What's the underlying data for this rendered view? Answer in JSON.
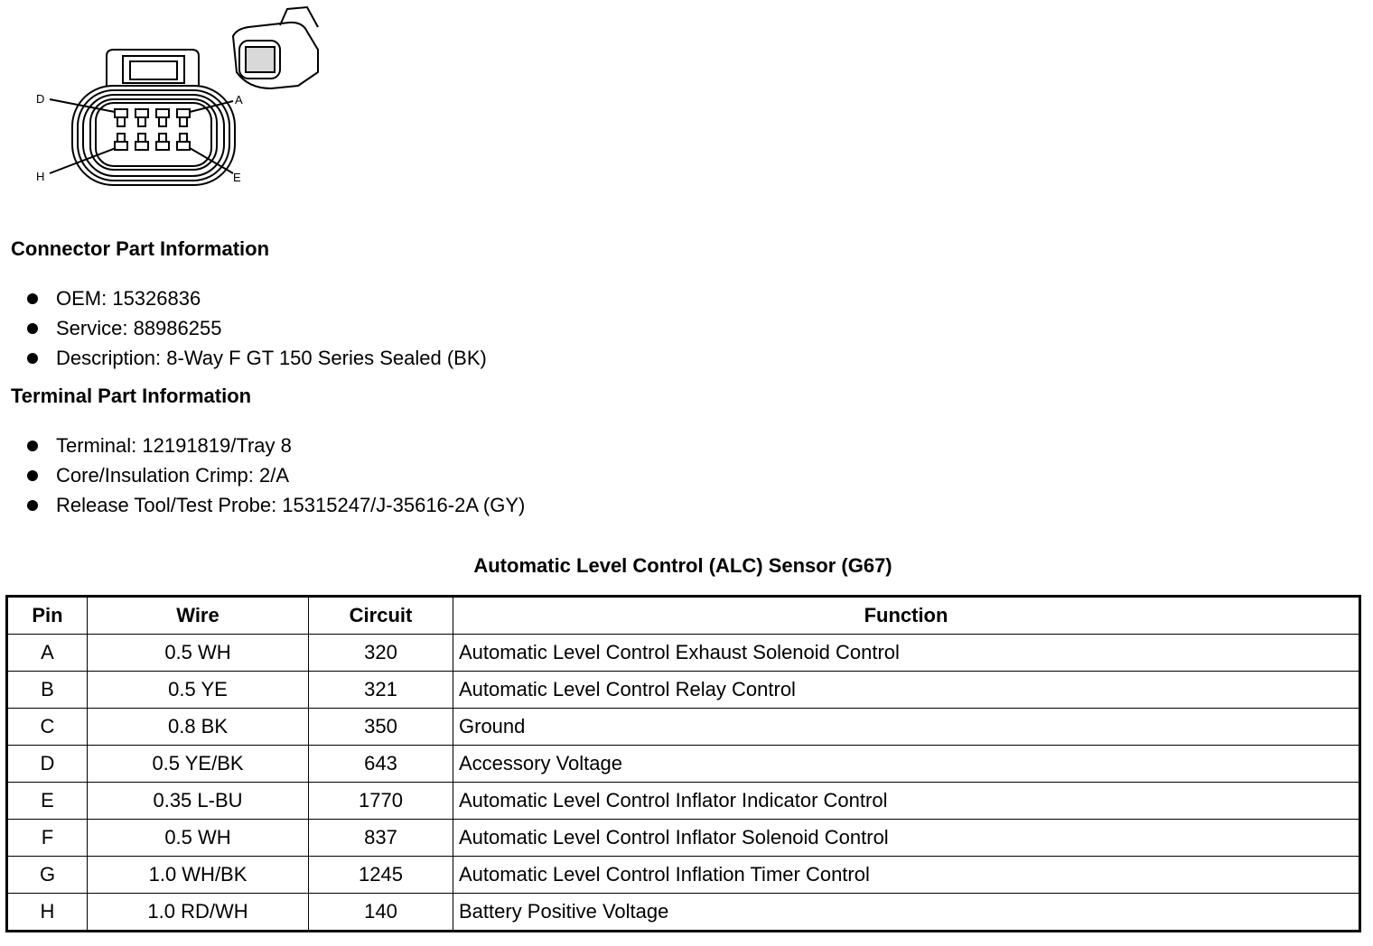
{
  "diagram": {
    "pin_labels": [
      "D",
      "A",
      "H",
      "E"
    ]
  },
  "connector_section": {
    "heading": "Connector Part Information",
    "items": [
      "OEM: 15326836",
      "Service: 88986255",
      "Description: 8-Way F GT 150 Series Sealed (BK)"
    ]
  },
  "terminal_section": {
    "heading": "Terminal Part Information",
    "items": [
      "Terminal: 12191819/Tray 8",
      "Core/Insulation Crimp: 2/A",
      "Release Tool/Test Probe: 15315247/J-35616-2A (GY)"
    ]
  },
  "table": {
    "title": "Automatic Level Control (ALC) Sensor (G67)",
    "headers": [
      "Pin",
      "Wire",
      "Circuit",
      "Function"
    ],
    "rows": [
      [
        "A",
        "0.5 WH",
        "320",
        "Automatic Level Control Exhaust Solenoid Control"
      ],
      [
        "B",
        "0.5 YE",
        "321",
        "Automatic Level Control Relay Control"
      ],
      [
        "C",
        "0.8 BK",
        "350",
        "Ground"
      ],
      [
        "D",
        "0.5 YE/BK",
        "643",
        "Accessory Voltage"
      ],
      [
        "E",
        "0.35 L-BU",
        "1770",
        "Automatic Level Control Inflator Indicator Control"
      ],
      [
        "F",
        "0.5 WH",
        "837",
        "Automatic Level Control Inflator Solenoid Control"
      ],
      [
        "G",
        "1.0 WH/BK",
        "1245",
        "Automatic Level Control Inflation Timer Control"
      ],
      [
        "H",
        "1.0 RD/WH",
        "140",
        "Battery Positive Voltage"
      ]
    ]
  }
}
